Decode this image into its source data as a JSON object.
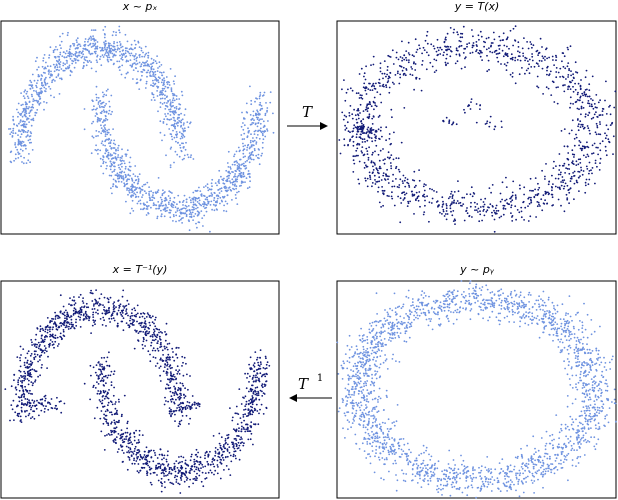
{
  "figure": {
    "arrow_forward": {
      "label": "T"
    },
    "arrow_inverse": {
      "label": "T",
      "sup": "1"
    }
  },
  "colors": {
    "light": "#6f93e0",
    "dark": "#111a77",
    "axis": "#000000"
  },
  "chart_data": [
    {
      "id": "x-sample",
      "type": "scatter",
      "title": "x ~ p_x",
      "title_display": "x ~ pₓ",
      "shape": "two-moons",
      "color": "#6f93e0",
      "xlim": [
        -1.25,
        2.25
      ],
      "ylim": [
        -0.75,
        1.25
      ],
      "grid": false
    },
    {
      "id": "y-transformed",
      "type": "scatter",
      "title": "y = T(x)",
      "title_display": "y = T(x)",
      "shape": "noisy-ring-with-clusters",
      "color": "#111a77",
      "xlim": [
        -1.5,
        1.5
      ],
      "ylim": [
        -1.3,
        1.3
      ],
      "grid": false
    },
    {
      "id": "x-inverse",
      "type": "scatter",
      "title": "x = T^-1(y)",
      "title_display": "x = T⁻¹(y)",
      "shape": "two-moons-with-tails",
      "color": "#111a77",
      "xlim": [
        -1.25,
        2.25
      ],
      "ylim": [
        -0.75,
        1.25
      ],
      "grid": false
    },
    {
      "id": "y-sample",
      "type": "scatter",
      "title": "y ~ p_y",
      "title_display": "y ~ pᵧ",
      "shape": "ring",
      "color": "#6f93e0",
      "xlim": [
        -1.5,
        1.5
      ],
      "ylim": [
        -1.3,
        1.3
      ],
      "grid": false
    }
  ]
}
